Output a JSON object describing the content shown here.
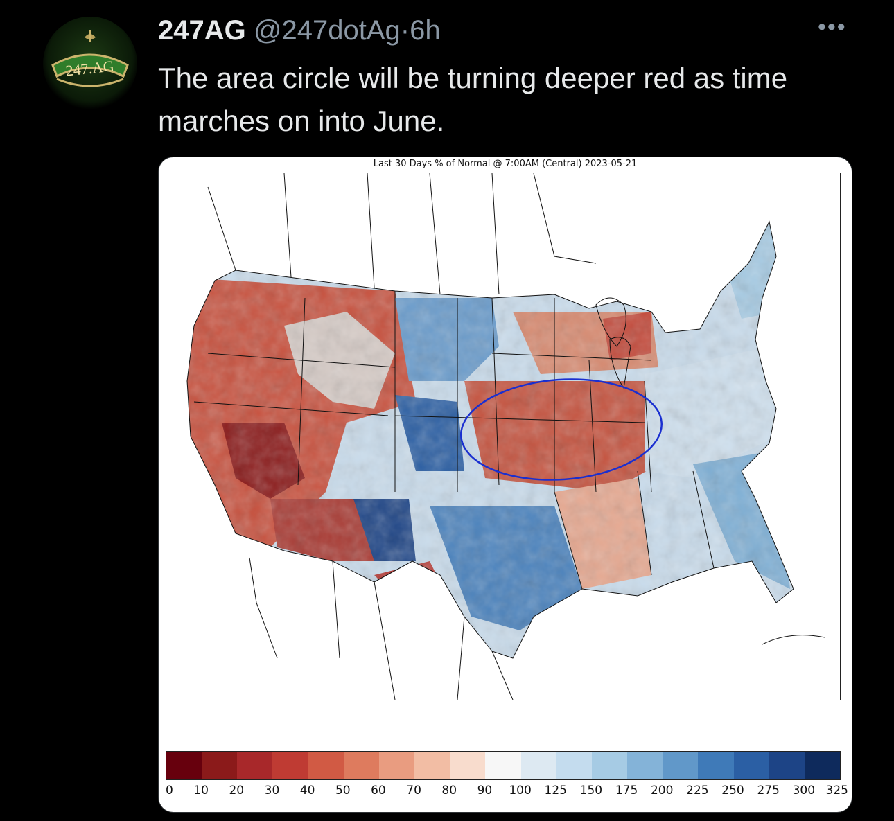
{
  "tweet": {
    "display_name": "247AG",
    "handle": "@247dotAg",
    "separator": "·",
    "time": "6h",
    "more_icon": "more-horizontal-icon",
    "text": "The area circle will be turning deeper red as time marches on into June.",
    "avatar_text": "247.AG"
  },
  "map": {
    "title": "Last 30 Days % of Normal @ 7:00AM (Central) 2023-05-21",
    "legend": {
      "tick_labels": [
        "0",
        "10",
        "20",
        "30",
        "40",
        "50",
        "60",
        "70",
        "80",
        "90",
        "100",
        "125",
        "150",
        "175",
        "200",
        "225",
        "250",
        "275",
        "300",
        "325"
      ],
      "colors": [
        "#67000d",
        "#8b1a1a",
        "#a8282a",
        "#bf3b33",
        "#d15a44",
        "#de7b5e",
        "#e99c80",
        "#f2bda4",
        "#f8dccd",
        "#f7f7f7",
        "#dde9f2",
        "#c4dcee",
        "#a6cbe4",
        "#84b3d8",
        "#6198c9",
        "#3f7ab8",
        "#2b5fa4",
        "#1d4486",
        "#0e2a5c"
      ]
    }
  }
}
